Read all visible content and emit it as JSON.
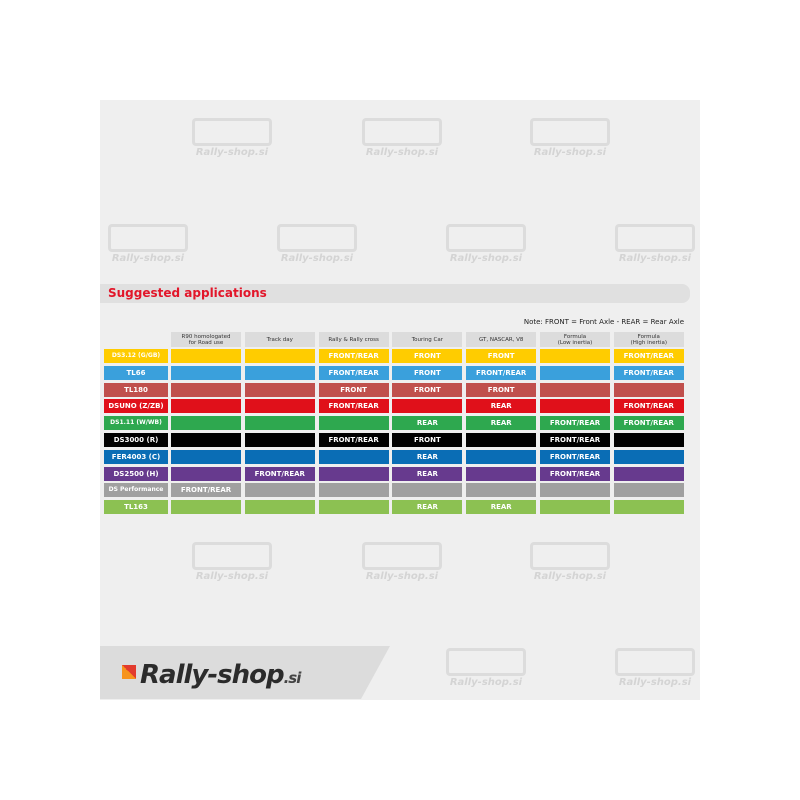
{
  "section_title": "Suggested applications",
  "note": "Note: FRONT = Front Axle - REAR = Rear Axle",
  "watermark": "Rally-shop.si",
  "logo": {
    "main": "Rally-shop",
    "tld": ".si"
  },
  "columns": [
    "R90 homologated\nfor Road use",
    "Track day",
    "Rally & Rally cross",
    "Touring Car",
    "GT, NASCAR, V8",
    "Formula\n(Low inertia)",
    "Formula\n(High inertia)"
  ],
  "rows": [
    {
      "name": "DS3.12 (G/GB)",
      "color": "#ffcc00",
      "cells": [
        "",
        "",
        "FRONT/REAR",
        "FRONT",
        "FRONT",
        "",
        "FRONT/REAR"
      ]
    },
    {
      "name": "TL66",
      "color": "#3aa0dc",
      "cells": [
        "",
        "",
        "FRONT/REAR",
        "FRONT",
        "FRONT/REAR",
        "",
        "FRONT/REAR"
      ]
    },
    {
      "name": "TL180",
      "color": "#c0504d",
      "cells": [
        "",
        "",
        "FRONT",
        "FRONT",
        "FRONT",
        "",
        ""
      ]
    },
    {
      "name": "DSUNO (Z/ZB)",
      "color": "#e0101a",
      "cells": [
        "",
        "",
        "FRONT/REAR",
        "",
        "REAR",
        "",
        "FRONT/REAR"
      ]
    },
    {
      "name": "DS1.11 (W/WB)",
      "color": "#2ea84f",
      "cells": [
        "",
        "",
        "",
        "REAR",
        "REAR",
        "FRONT/REAR",
        "FRONT/REAR"
      ]
    },
    {
      "name": "DS3000 (R)",
      "color": "#000000",
      "cells": [
        "",
        "",
        "FRONT/REAR",
        "FRONT",
        "",
        "FRONT/REAR",
        ""
      ]
    },
    {
      "name": "FER4003 (C)",
      "color": "#0a6db5",
      "cells": [
        "",
        "",
        "",
        "REAR",
        "",
        "FRONT/REAR",
        ""
      ]
    },
    {
      "name": "DS2500 (H)",
      "color": "#673a8e",
      "cells": [
        "",
        "FRONT/REAR",
        "",
        "REAR",
        "",
        "FRONT/REAR",
        ""
      ]
    },
    {
      "name": "DS Performance",
      "color": "#a0a0a0",
      "cells": [
        "FRONT/REAR",
        "",
        "",
        "",
        "",
        "",
        ""
      ]
    },
    {
      "name": "TL163",
      "color": "#8cc152",
      "cells": [
        "",
        "",
        "",
        "REAR",
        "REAR",
        "",
        ""
      ]
    }
  ]
}
